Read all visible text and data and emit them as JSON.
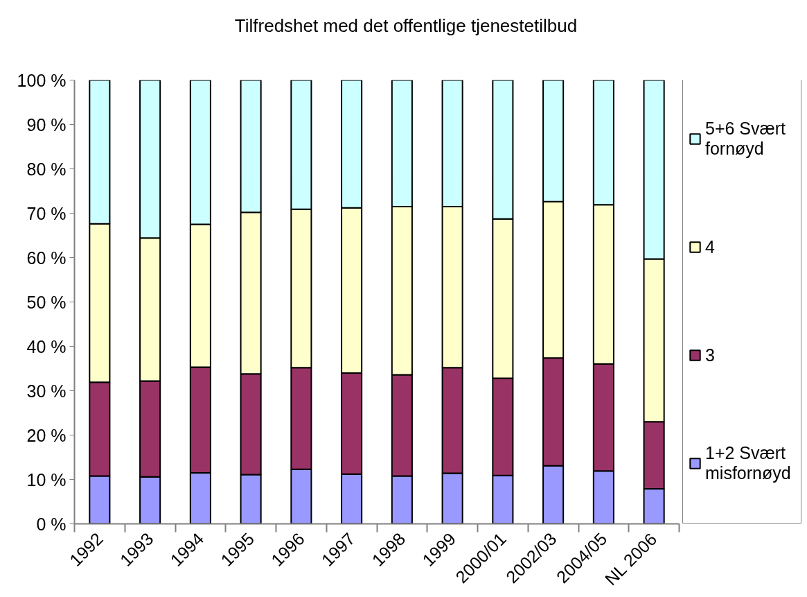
{
  "chart_data": {
    "type": "bar",
    "title": "Tilfredshet med det offentlige tjenestetilbud",
    "categories": [
      "1992",
      "1993",
      "1994",
      "1995",
      "1996",
      "1997",
      "1998",
      "1999",
      "2000/01",
      "2002/03",
      "2004/05",
      "NL 2006"
    ],
    "stacked": true,
    "series": [
      {
        "name": "1+2 Svært misfornøyd",
        "color": "#9999ff",
        "values": [
          10.8,
          10.6,
          11.5,
          11.1,
          12.3,
          11.2,
          10.8,
          11.4,
          10.9,
          13.1,
          11.9,
          7.9
        ]
      },
      {
        "name": "3",
        "color": "#993366",
        "values": [
          21.1,
          21.6,
          23.8,
          22.7,
          22.9,
          22.8,
          22.8,
          23.8,
          21.9,
          24.3,
          24.1,
          15.1
        ]
      },
      {
        "name": "4",
        "color": "#ffffcc",
        "values": [
          35.7,
          32.2,
          32.2,
          36.4,
          35.7,
          37.2,
          37.9,
          36.3,
          35.9,
          35.2,
          35.9,
          36.7
        ]
      },
      {
        "name": "5+6 Svært fornøyd",
        "color": "#ccffff",
        "values": [
          32.4,
          35.6,
          32.5,
          29.8,
          29.1,
          28.8,
          28.5,
          28.5,
          31.3,
          27.4,
          28.1,
          40.3
        ]
      }
    ],
    "ylim": [
      0,
      100
    ],
    "yticks": [
      {
        "value": 0,
        "label": "0 %"
      },
      {
        "value": 10,
        "label": "10 %"
      },
      {
        "value": 20,
        "label": "20 %"
      },
      {
        "value": 30,
        "label": "30 %"
      },
      {
        "value": 40,
        "label": "40 %"
      },
      {
        "value": 50,
        "label": "50 %"
      },
      {
        "value": 60,
        "label": "60 %"
      },
      {
        "value": 70,
        "label": "70 %"
      },
      {
        "value": 80,
        "label": "80 %"
      },
      {
        "value": 90,
        "label": "90 %"
      },
      {
        "value": 100,
        "label": "100 %"
      }
    ],
    "grid": false,
    "legend": "right"
  }
}
